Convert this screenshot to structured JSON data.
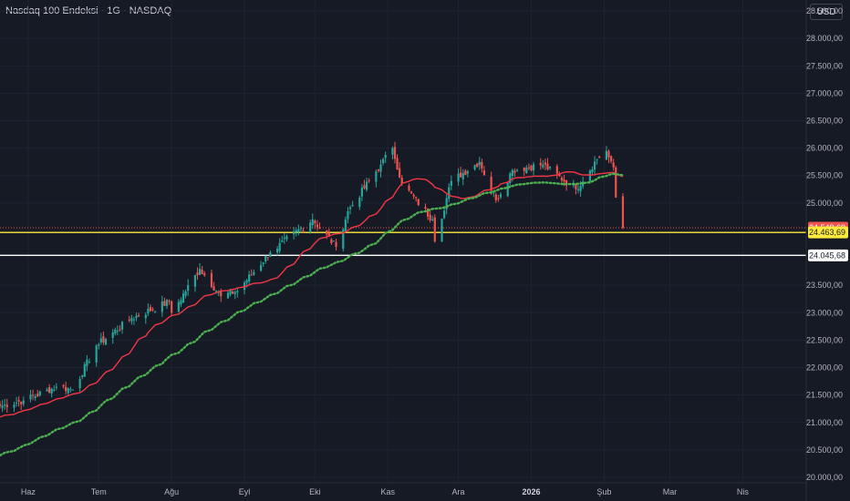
{
  "header": {
    "symbol_title": "Nasdaq 100 Endeksi · 1G · NASDAQ",
    "currency_label": "USD"
  },
  "colors": {
    "background": "#161a25",
    "grid": "#1f2331",
    "axis_text": "#b2b5be",
    "up": "#26a69a",
    "down": "#ef5350",
    "ema_fast": "#f23645",
    "ema_slow": "#4caf50",
    "level_yellow": "#ffeb3b",
    "level_white": "#ffffff",
    "last_price_tag": "#ef5350"
  },
  "chart_data": {
    "type": "candlestick",
    "x_axis": {
      "labels": [
        {
          "label": "Haz",
          "date": "2025-06-01",
          "bold": false
        },
        {
          "label": "Tem",
          "date": "2025-07-01",
          "bold": false
        },
        {
          "label": "Ağu",
          "date": "2025-08-01",
          "bold": false
        },
        {
          "label": "Eyl",
          "date": "2025-09-01",
          "bold": false
        },
        {
          "label": "Eki",
          "date": "2025-10-01",
          "bold": false
        },
        {
          "label": "Kas",
          "date": "2025-11-01",
          "bold": false
        },
        {
          "label": "Ara",
          "date": "2025-12-01",
          "bold": false
        },
        {
          "label": "2026",
          "date": "2026-01-01",
          "bold": true
        },
        {
          "label": "Şub",
          "date": "2026-02-01",
          "bold": false
        },
        {
          "label": "Mar",
          "date": "2026-03-01",
          "bold": false
        },
        {
          "label": "Nis",
          "date": "2026-04-01",
          "bold": false
        }
      ],
      "range": [
        "2025-05-20",
        "2026-04-28"
      ]
    },
    "y_axis": {
      "range": [
        19900,
        28700
      ],
      "ticks": [
        {
          "value": 20000,
          "label": "20.000,00"
        },
        {
          "value": 20500,
          "label": "20.500,00"
        },
        {
          "value": 21000,
          "label": "21.000,00"
        },
        {
          "value": 21500,
          "label": "21.500,00"
        },
        {
          "value": 22000,
          "label": "22.000,00"
        },
        {
          "value": 22500,
          "label": "22.500,00"
        },
        {
          "value": 23000,
          "label": "23.000,00"
        },
        {
          "value": 23500,
          "label": "23.500,00"
        },
        {
          "value": 25000,
          "label": "25.000,00"
        },
        {
          "value": 25500,
          "label": "25.500,00"
        },
        {
          "value": 26000,
          "label": "26.000,00"
        },
        {
          "value": 26500,
          "label": "26.500,00"
        },
        {
          "value": 27000,
          "label": "27.000,00"
        },
        {
          "value": 27500,
          "label": "27.500,00"
        },
        {
          "value": 28000,
          "label": "28.000,00"
        },
        {
          "value": 28500,
          "label": "28.500,00"
        }
      ]
    },
    "grid": true,
    "close_anchors": [
      {
        "date": "2025-05-20",
        "close": 21300
      },
      {
        "date": "2025-05-30",
        "close": 21400
      },
      {
        "date": "2025-06-13",
        "close": 21650
      },
      {
        "date": "2025-06-20",
        "close": 21600
      },
      {
        "date": "2025-06-30",
        "close": 22400
      },
      {
        "date": "2025-07-15",
        "close": 22900
      },
      {
        "date": "2025-07-31",
        "close": 23200
      },
      {
        "date": "2025-08-01",
        "close": 23000
      },
      {
        "date": "2025-08-13",
        "close": 23800
      },
      {
        "date": "2025-08-22",
        "close": 23300
      },
      {
        "date": "2025-08-29",
        "close": 23400
      },
      {
        "date": "2025-09-12",
        "close": 24100
      },
      {
        "date": "2025-09-30",
        "close": 24700
      },
      {
        "date": "2025-10-10",
        "close": 24200
      },
      {
        "date": "2025-10-15",
        "close": 24850
      },
      {
        "date": "2025-10-29",
        "close": 25700
      },
      {
        "date": "2025-11-03",
        "close": 26000
      },
      {
        "date": "2025-11-07",
        "close": 25350
      },
      {
        "date": "2025-11-20",
        "close": 24700
      },
      {
        "date": "2025-11-21",
        "close": 24300
      },
      {
        "date": "2025-11-28",
        "close": 25400
      },
      {
        "date": "2025-12-10",
        "close": 25750
      },
      {
        "date": "2025-12-17",
        "close": 25050
      },
      {
        "date": "2025-12-24",
        "close": 25600
      },
      {
        "date": "2026-01-06",
        "close": 25700
      },
      {
        "date": "2026-01-20",
        "close": 25250
      },
      {
        "date": "2026-01-29",
        "close": 25800
      },
      {
        "date": "2026-02-02",
        "close": 25950
      },
      {
        "date": "2026-02-05",
        "close": 25650
      },
      {
        "date": "2026-02-06",
        "close": 25100
      },
      {
        "date": "2026-02-09",
        "close": 24548.69
      }
    ],
    "indicators": [
      {
        "kind": "moving-average",
        "period": 20,
        "style": "solid",
        "color": "#f23645"
      },
      {
        "kind": "moving-average",
        "period": 50,
        "style": "dotted",
        "color": "#4caf50"
      }
    ],
    "horizontal_levels": [
      {
        "value": 24548.69,
        "label": "24.548,69",
        "color": "#ef5350",
        "kind": "last-price"
      },
      {
        "value": 24463.69,
        "label": "24.463,69",
        "color": "#ffeb3b",
        "kind": "level"
      },
      {
        "value": 24045.68,
        "label": "24.045,68",
        "color": "#ffffff",
        "kind": "level"
      }
    ]
  }
}
